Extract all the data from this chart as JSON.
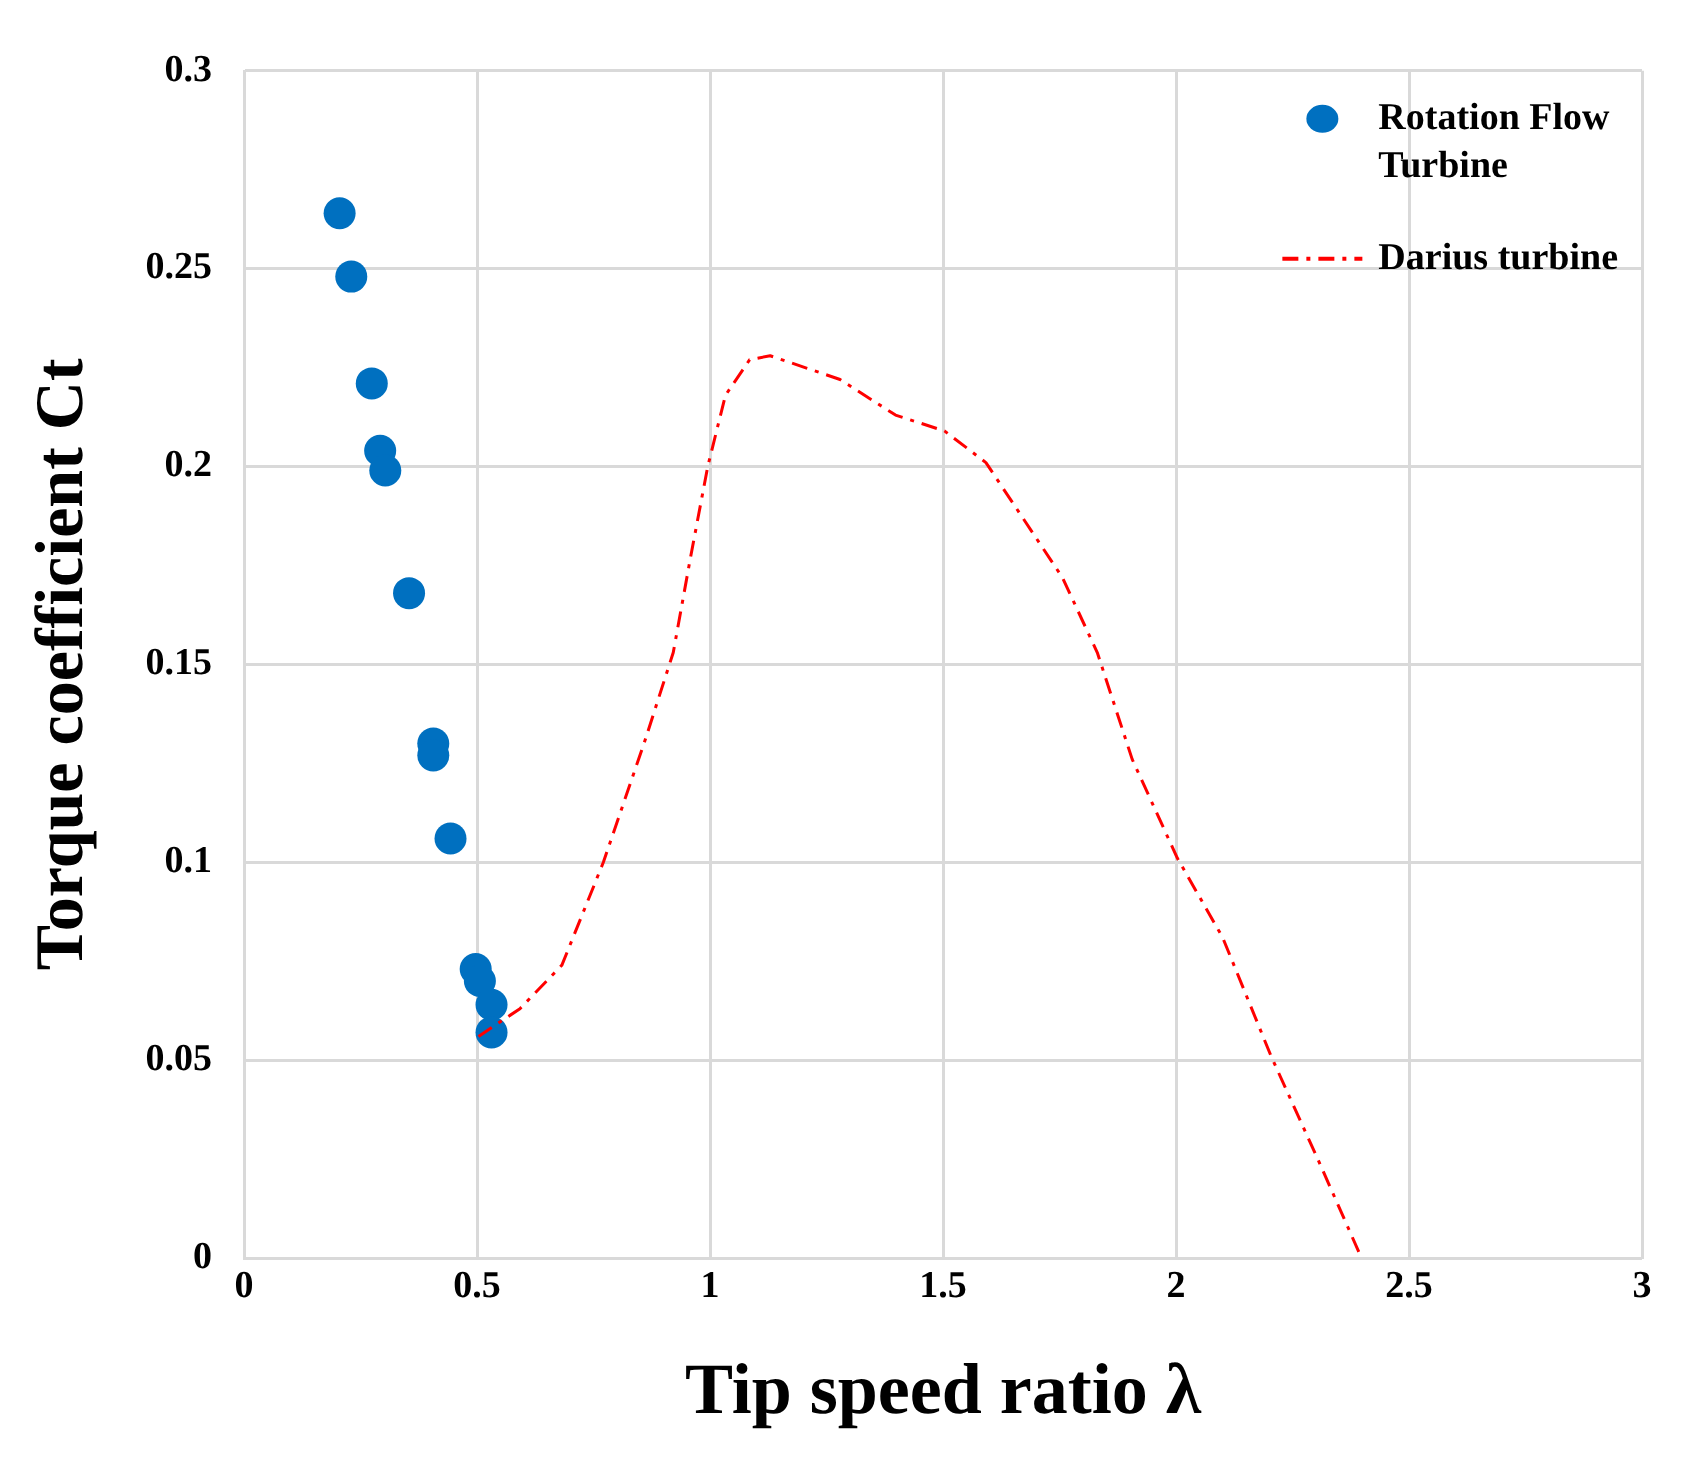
{
  "chart_data": {
    "type": "scatter",
    "xlabel": "Tip speed ratio λ",
    "ylabel": "Torque coefficient Ct",
    "xlim": [
      0,
      3
    ],
    "xticks": [
      0,
      0.5,
      1,
      1.5,
      2,
      2.5,
      3
    ],
    "ylim": [
      0,
      0.3
    ],
    "yticks": [
      0,
      0.05,
      0.1,
      0.15,
      0.2,
      0.25,
      0.3
    ],
    "grid": true,
    "legend": "top right",
    "series": [
      {
        "name": "Rotation Flow Turbine",
        "type": "scatter",
        "color": "#0070c0",
        "marker": "circle",
        "x": [
          0.205,
          0.23,
          0.274,
          0.292,
          0.303,
          0.354,
          0.406,
          0.406,
          0.443,
          0.497,
          0.506,
          0.531,
          0.531
        ],
        "values": [
          0.264,
          0.248,
          0.221,
          0.204,
          0.199,
          0.168,
          0.13,
          0.127,
          0.106,
          0.073,
          0.07,
          0.064,
          0.057
        ]
      },
      {
        "name": "Darius turbine",
        "type": "line",
        "color": "#ff0000",
        "marker": "none",
        "line_style": "dashed",
        "x": [
          0.503,
          0.592,
          0.682,
          0.771,
          0.861,
          0.921,
          0.958,
          0.995,
          1.033,
          1.085,
          1.129,
          1.279,
          1.398,
          1.503,
          1.592,
          1.756,
          1.831,
          1.906,
          2.003,
          2.1,
          2.204,
          2.308,
          2.398
        ],
        "values": [
          0.056,
          0.063,
          0.074,
          0.1,
          0.131,
          0.153,
          0.177,
          0.2,
          0.218,
          0.227,
          0.228,
          0.222,
          0.213,
          0.209,
          0.201,
          0.172,
          0.153,
          0.126,
          0.101,
          0.081,
          0.051,
          0.024,
          0
        ]
      }
    ]
  }
}
